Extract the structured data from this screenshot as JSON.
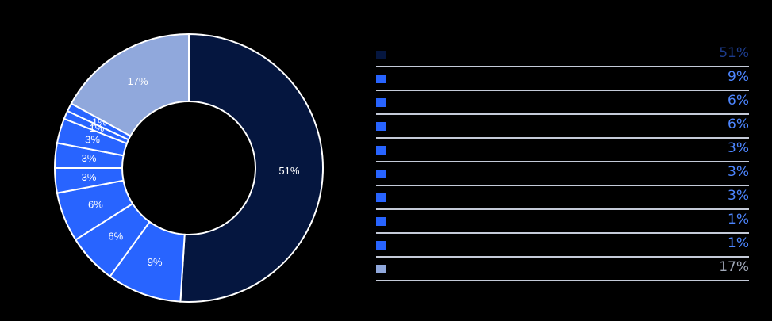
{
  "chart_data": {
    "type": "pie",
    "donut": true,
    "title": "",
    "series": [
      {
        "label": "",
        "value": 51,
        "display": "51%",
        "color": "#05163f",
        "text_color": "#1d3c8c"
      },
      {
        "label": "",
        "value": 9,
        "display": "9%",
        "color": "#2864ff",
        "text_color": "#4d86ff"
      },
      {
        "label": "",
        "value": 6,
        "display": "6%",
        "color": "#2864ff",
        "text_color": "#4d86ff"
      },
      {
        "label": "",
        "value": 6,
        "display": "6%",
        "color": "#2864ff",
        "text_color": "#4d86ff"
      },
      {
        "label": "",
        "value": 3,
        "display": "3%",
        "color": "#2864ff",
        "text_color": "#4d86ff"
      },
      {
        "label": "",
        "value": 3,
        "display": "3%",
        "color": "#2864ff",
        "text_color": "#4d86ff"
      },
      {
        "label": "",
        "value": 3,
        "display": "3%",
        "color": "#2864ff",
        "text_color": "#4d86ff"
      },
      {
        "label": "",
        "value": 1,
        "display": "1%",
        "color": "#2864ff",
        "text_color": "#4d86ff"
      },
      {
        "label": "",
        "value": 1,
        "display": "1%",
        "color": "#2864ff",
        "text_color": "#4d86ff"
      },
      {
        "label": "",
        "value": 17,
        "display": "17%",
        "color": "#90a8dc",
        "text_color": "#a0a8b8"
      }
    ],
    "legend_position": "right"
  }
}
